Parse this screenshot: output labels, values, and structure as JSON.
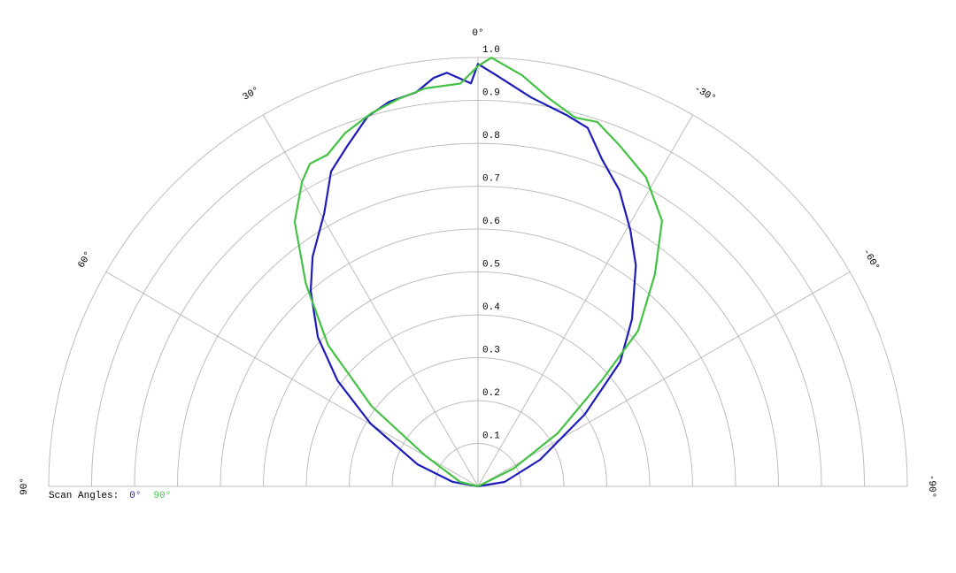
{
  "chart_data": {
    "type": "polar",
    "rlim": [
      0,
      1
    ],
    "thetalim": [
      -90,
      90
    ],
    "rticks": [
      0.1,
      0.2,
      0.3,
      0.4,
      0.5,
      0.6,
      0.7,
      0.8,
      0.9,
      {
        "value": 1,
        "label": "1.0"
      }
    ],
    "thetaticks": [
      {
        "value": 90,
        "label": "90°"
      },
      {
        "value": 60,
        "label": "60°"
      },
      {
        "value": 30,
        "label": "30°"
      },
      {
        "value": 0,
        "label": "0°"
      },
      {
        "value": -30,
        "label": "-30°"
      },
      {
        "value": -60,
        "label": "-60°"
      },
      {
        "value": -90,
        "label": "-90°"
      }
    ],
    "grid": true,
    "legend_title": "Scan Angles:",
    "legend": "lower left",
    "series": [
      {
        "name": "0°",
        "color": "#1c1cb8",
        "x": [
          -90,
          -80.5,
          -66.8,
          -56,
          -48.8,
          -42.6,
          -35.5,
          -30.7,
          -25.5,
          -20.7,
          -17,
          -13.4,
          -7.8,
          -2.5,
          0,
          1,
          4.3,
          6.2,
          8.9,
          13,
          16.6,
          21,
          25,
          29.4,
          35.7,
          40.5,
          47,
          53,
          59.7,
          70,
          80,
          90
        ],
        "values": [
          0,
          0.063,
          0.157,
          0.3,
          0.44,
          0.53,
          0.633,
          0.695,
          0.765,
          0.816,
          0.874,
          0.89,
          0.915,
          0.96,
          0.985,
          0.94,
          0.967,
          0.958,
          0.93,
          0.92,
          0.9,
          0.85,
          0.81,
          0.73,
          0.66,
          0.6,
          0.51,
          0.41,
          0.29,
          0.15,
          0.06,
          0
        ]
      },
      {
        "name": "90°",
        "color": "#44c244",
        "x": [
          -90,
          -63.4,
          -56.3,
          -49.4,
          -45.8,
          -39.8,
          -34.7,
          -28.5,
          -22.6,
          -18.1,
          -14.8,
          -10.3,
          -6.1,
          -1.8,
          0,
          2.5,
          7.6,
          11.6,
          15.9,
          20.6,
          24.4,
          27.5,
          30,
          34.7,
          40.3,
          46.7,
          53,
          59.7,
          76,
          90
        ],
        "values": [
          0,
          0.092,
          0.223,
          0.38,
          0.52,
          0.644,
          0.753,
          0.82,
          0.86,
          0.894,
          0.889,
          0.92,
          0.964,
          1.0,
          0.98,
          0.94,
          0.936,
          0.922,
          0.905,
          0.88,
          0.849,
          0.848,
          0.82,
          0.75,
          0.62,
          0.48,
          0.31,
          0.143,
          0.043,
          0
        ]
      }
    ]
  }
}
